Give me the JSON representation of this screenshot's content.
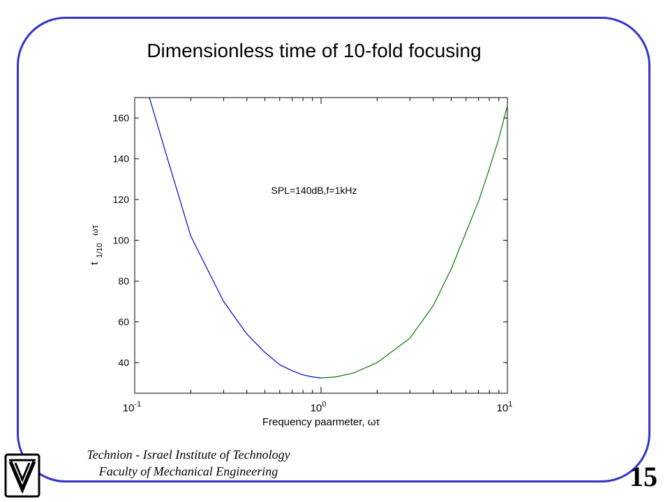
{
  "slide": {
    "title": "Dimensionless time of 10-fold focusing",
    "page_number": "15",
    "footer": {
      "line1": "Technion - Israel Institute of Technology",
      "line2": "Faculty of Mechanical Engineering"
    },
    "logo_icon": "technion-logo-icon",
    "frame_color": "#3333cc"
  },
  "chart_data": {
    "type": "line",
    "title": "",
    "xlabel": "Frequency paarmeter, ωτ",
    "ylabel_main": "t",
    "ylabel_sub": "1/10",
    "ylabel_suffix": "ωτ",
    "x_scale": "log",
    "xlim": [
      0.1,
      10
    ],
    "ylim": [
      25,
      170
    ],
    "x_ticks": [
      {
        "value": 0.1,
        "base": "10",
        "exp": "-1"
      },
      {
        "value": 1,
        "base": "10",
        "exp": "0"
      },
      {
        "value": 10,
        "base": "10",
        "exp": "1"
      }
    ],
    "y_ticks": [
      40,
      60,
      80,
      100,
      120,
      140,
      160
    ],
    "grid": false,
    "annotation": "SPL=140dB,f=1kHz",
    "series": [
      {
        "color": "#0000cc",
        "x": [
          0.12,
          0.15,
          0.2,
          0.3,
          0.4,
          0.5,
          0.6,
          0.7,
          0.8,
          0.9,
          1.0
        ],
        "y": [
          170,
          140,
          102,
          70,
          54,
          45,
          39,
          36,
          34,
          33,
          32.5
        ]
      },
      {
        "color": "#007700",
        "x": [
          1.0,
          1.2,
          1.5,
          2,
          3,
          4,
          5,
          6,
          7,
          8,
          9,
          10
        ],
        "y": [
          32.5,
          33,
          35,
          40,
          52,
          68,
          86,
          104,
          119,
          135,
          150,
          166
        ]
      }
    ]
  }
}
